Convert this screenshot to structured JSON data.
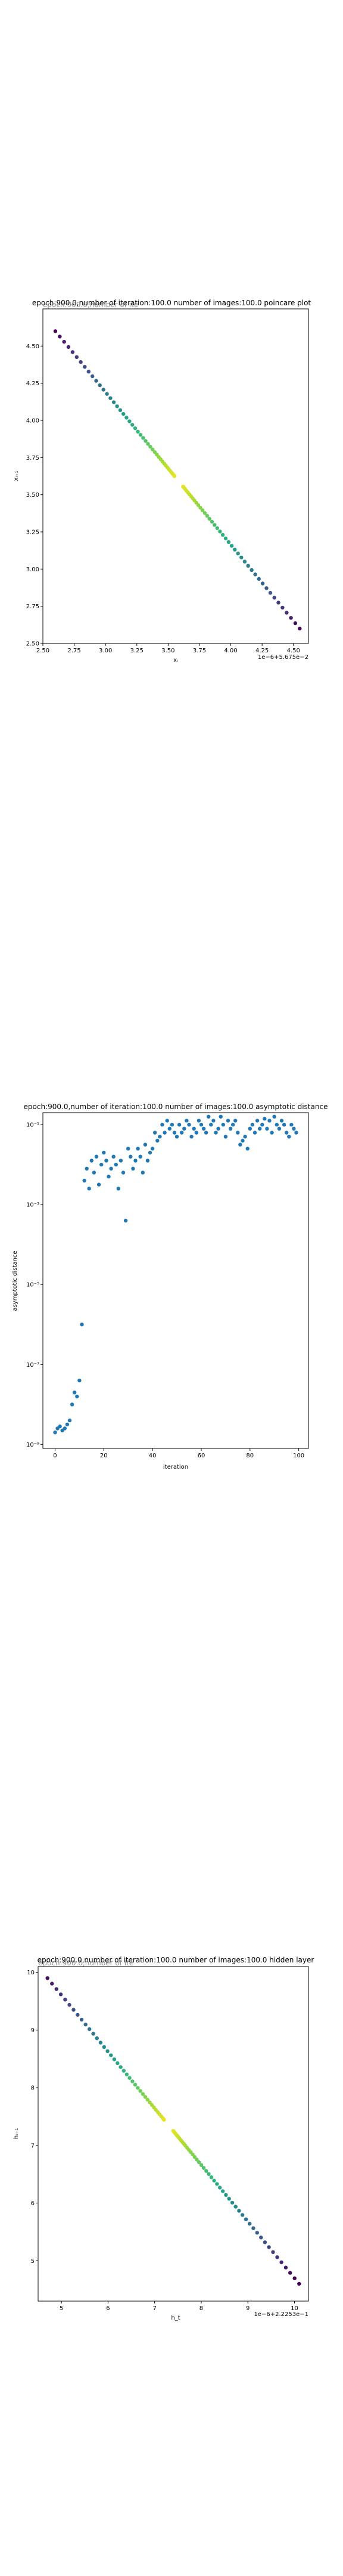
{
  "chart_data": [
    {
      "type": "scatter",
      "title": "epoch:900.0,number of iteration:100.0 number of images:100.0 poincare plot",
      "title_overlay": "epoch:900.0,number of ite",
      "xlabel": "xᵢ",
      "ylabel": "xᵢ₊₁",
      "offset_label": "1e−6+5.675e−2",
      "xlim": [
        2.5,
        4.62
      ],
      "ylim": [
        2.5,
        4.75
      ],
      "xticks": [
        2.5,
        2.75,
        3.0,
        3.25,
        3.5,
        3.75,
        4.0,
        4.25,
        4.5
      ],
      "xtick_labels": [
        "2.50",
        "2.75",
        "3.00",
        "3.25",
        "3.50",
        "3.75",
        "4.00",
        "4.25",
        "4.50"
      ],
      "yticks": [
        2.5,
        2.75,
        3.0,
        3.25,
        3.5,
        3.75,
        4.0,
        4.25,
        4.5
      ],
      "ytick_labels": [
        "2.50",
        "2.75",
        "3.00",
        "3.25",
        "3.50",
        "3.75",
        "4.00",
        "4.25",
        "4.50"
      ],
      "grid": false,
      "colormap": "viridis",
      "line_start": [
        2.6,
        4.6
      ],
      "line_end": [
        4.55,
        2.6
      ],
      "gap": [
        3.55,
        3.62
      ],
      "points": 100
    },
    {
      "type": "scatter",
      "title": "epoch:900.0,number of iteration:100.0  number of images:100.0 asymptotic distance",
      "xlabel": "iteration",
      "ylabel": "asymptotic distance",
      "xlim": [
        -5,
        104
      ],
      "yscale": "log",
      "ylim_exp": [
        -9.1,
        -0.7
      ],
      "xticks": [
        0,
        20,
        40,
        60,
        80,
        100
      ],
      "xtick_labels": [
        "0",
        "20",
        "40",
        "60",
        "80",
        "100"
      ],
      "yticks_exp": [
        -9,
        -7,
        -5,
        -3,
        -1
      ],
      "ytick_labels": [
        "10⁻⁹",
        "10⁻⁷",
        "10⁻⁵",
        "10⁻³",
        "10⁻¹"
      ],
      "grid": false,
      "color": "#1f77b4",
      "x": [
        0,
        1,
        2,
        3,
        4,
        5,
        6,
        7,
        8,
        9,
        10,
        11,
        12,
        13,
        14,
        15,
        16,
        17,
        18,
        19,
        20,
        21,
        22,
        23,
        24,
        25,
        26,
        27,
        28,
        29,
        30,
        31,
        32,
        33,
        34,
        35,
        36,
        37,
        38,
        39,
        40,
        41,
        42,
        43,
        44,
        45,
        46,
        47,
        48,
        49,
        50,
        51,
        52,
        53,
        54,
        55,
        56,
        57,
        58,
        59,
        60,
        61,
        62,
        63,
        64,
        65,
        66,
        67,
        68,
        69,
        70,
        71,
        72,
        73,
        74,
        75,
        76,
        77,
        78,
        79,
        80,
        81,
        82,
        83,
        84,
        85,
        86,
        87,
        88,
        89,
        90,
        91,
        92,
        93,
        94,
        95,
        96,
        97,
        98,
        99
      ],
      "log10_y": [
        -8.7,
        -8.6,
        -8.55,
        -8.65,
        -8.6,
        -8.5,
        -8.4,
        -8.0,
        -7.7,
        -7.8,
        -7.4,
        -6.0,
        -2.4,
        -2.1,
        -2.6,
        -1.9,
        -2.2,
        -1.8,
        -2.5,
        -2.0,
        -1.7,
        -1.9,
        -2.3,
        -2.1,
        -1.8,
        -2.0,
        -2.6,
        -1.9,
        -2.2,
        -3.4,
        -1.6,
        -1.8,
        -2.1,
        -1.9,
        -1.6,
        -1.8,
        -2.2,
        -1.5,
        -1.9,
        -1.7,
        -1.6,
        -1.2,
        -1.4,
        -1.3,
        -1.0,
        -1.2,
        -0.9,
        -1.1,
        -1.0,
        -1.2,
        -1.3,
        -1.0,
        -1.2,
        -1.1,
        -0.9,
        -1.0,
        -1.3,
        -1.1,
        -1.2,
        -0.9,
        -1.0,
        -1.1,
        -1.2,
        -0.8,
        -1.0,
        -0.9,
        -1.2,
        -1.1,
        -0.8,
        -1.0,
        -1.3,
        -0.9,
        -1.1,
        -1.0,
        -0.9,
        -1.2,
        -1.5,
        -1.4,
        -1.3,
        -1.6,
        -1.1,
        -1.0,
        -1.2,
        -0.9,
        -1.1,
        -1.0,
        -0.85,
        -1.1,
        -0.9,
        -1.2,
        -0.8,
        -1.0,
        -1.1,
        -0.9,
        -1.0,
        -1.2,
        -1.3,
        -1.0,
        -1.1,
        -1.2
      ]
    },
    {
      "type": "scatter",
      "title": "epoch:900.0,number of iteration:100.0  number of images:100.0 hidden layer",
      "title_overlay": "epoch:900.0,number of ite",
      "xlabel": "h_t",
      "ylabel": "hₜ₊₁",
      "offset_label": "1e−6+2.2253e−1",
      "xlim": [
        4.5,
        10.3
      ],
      "ylim": [
        4.3,
        10.1
      ],
      "xticks": [
        5,
        6,
        7,
        8,
        9,
        10
      ],
      "xtick_labels": [
        "5",
        "6",
        "7",
        "8",
        "9",
        "10"
      ],
      "yticks": [
        5,
        6,
        7,
        8,
        9,
        10
      ],
      "ytick_labels": [
        "5",
        "6",
        "7",
        "8",
        "9",
        "10"
      ],
      "grid": false,
      "colormap": "viridis",
      "line_start": [
        4.7,
        9.9
      ],
      "line_end": [
        10.1,
        4.6
      ],
      "gap": [
        7.2,
        7.4
      ],
      "points": 100
    }
  ]
}
